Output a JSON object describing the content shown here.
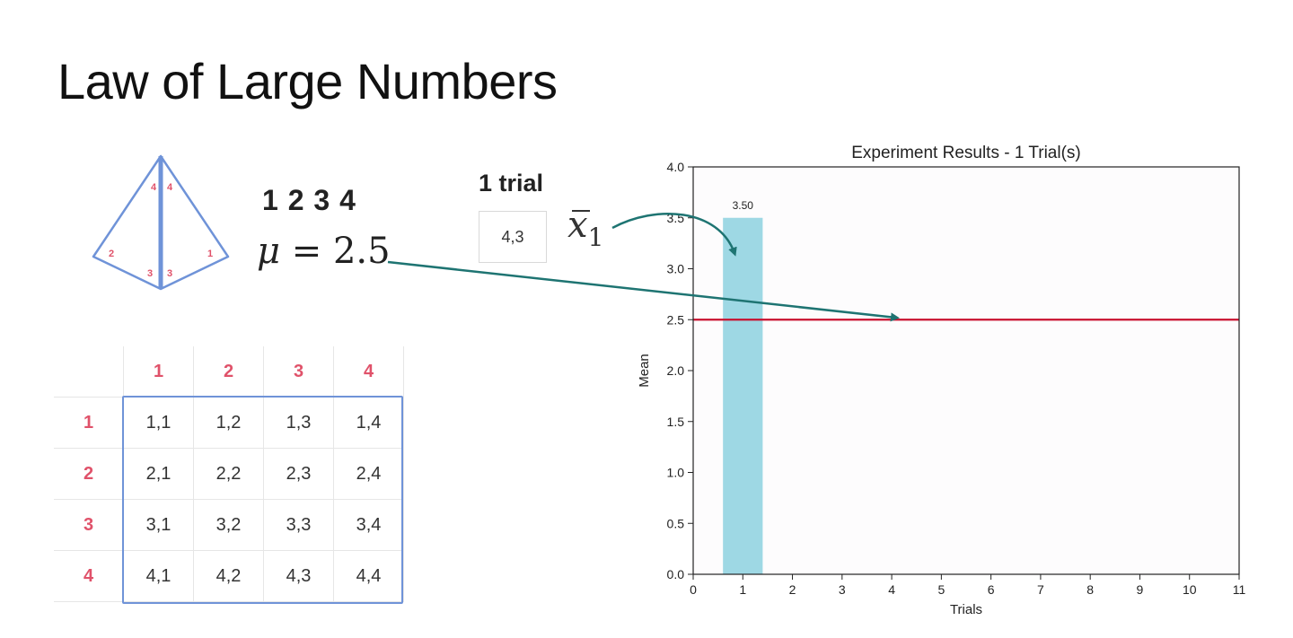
{
  "slide": {
    "title": "Law of Large Numbers",
    "die_faces": "1 2 3 4",
    "mu_symbol": "μ",
    "mu_equals": " = 2.5",
    "trial_label": "1 trial",
    "trial_value": "4,3",
    "xbar_symbol": "x",
    "xbar_subscript": "1",
    "tetra_labels": [
      "4",
      "4",
      "2",
      "3",
      "3",
      "1"
    ]
  },
  "table": {
    "col_headers": [
      "1",
      "2",
      "3",
      "4"
    ],
    "rows": [
      {
        "label": "1",
        "cells": [
          "1,1",
          "1,2",
          "1,3",
          "1,4"
        ]
      },
      {
        "label": "2",
        "cells": [
          "2,1",
          "2,2",
          "2,3",
          "2,4"
        ]
      },
      {
        "label": "3",
        "cells": [
          "3,1",
          "3,2",
          "3,3",
          "3,4"
        ]
      },
      {
        "label": "4",
        "cells": [
          "4,1",
          "4,2",
          "4,3",
          "4,4"
        ]
      }
    ]
  },
  "colors": {
    "header_red": "#e0526a",
    "grid_blue": "#6f93d8",
    "bar_color": "#9ed8e4",
    "mean_line": "#c8102e",
    "arrow_teal": "#1e7472"
  },
  "chart_data": {
    "type": "bar",
    "title": "Experiment Results - 1 Trial(s)",
    "xlabel": "Trials",
    "ylabel": "Mean",
    "x": [
      1
    ],
    "values": [
      3.5
    ],
    "data_labels": [
      "3.50"
    ],
    "xlim": [
      0,
      11
    ],
    "ylim": [
      0,
      4.0
    ],
    "xticks": [
      "0",
      "1",
      "2",
      "3",
      "4",
      "5",
      "6",
      "7",
      "8",
      "9",
      "10",
      "11"
    ],
    "yticks": [
      "0.0",
      "0.5",
      "1.0",
      "1.5",
      "2.0",
      "2.5",
      "3.0",
      "3.5",
      "4.0"
    ],
    "reference_line": 2.5,
    "grid": false
  }
}
